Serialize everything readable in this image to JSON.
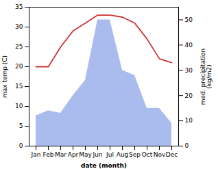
{
  "chart_data": {
    "type": "line",
    "categories": [
      "Jan",
      "Feb",
      "Mar",
      "Apr",
      "May",
      "Jun",
      "Jul",
      "Aug",
      "Sep",
      "Oct",
      "Nov",
      "Dec"
    ],
    "xlabel": "date (month)",
    "ylabel": "max temp (C)",
    "y2label": "med. precipitation\n(kg/m2)",
    "series": [
      {
        "type": "line",
        "color": "#cc3333",
        "values": [
          20,
          20,
          25,
          29,
          31,
          33,
          33,
          32.5,
          31,
          27,
          22,
          21
        ]
      },
      {
        "type": "area",
        "color": "#aabbee",
        "axis": "y2",
        "values": [
          12,
          14,
          13,
          20,
          26,
          50,
          50,
          30,
          28,
          15,
          15,
          9
        ]
      }
    ],
    "ylim": [
      0,
      35
    ],
    "yticks": [
      0,
      5,
      10,
      15,
      20,
      25,
      30,
      35
    ],
    "y2lim": [
      0,
      55
    ],
    "y2ticks": [
      0,
      10,
      20,
      30,
      40,
      50
    ]
  }
}
